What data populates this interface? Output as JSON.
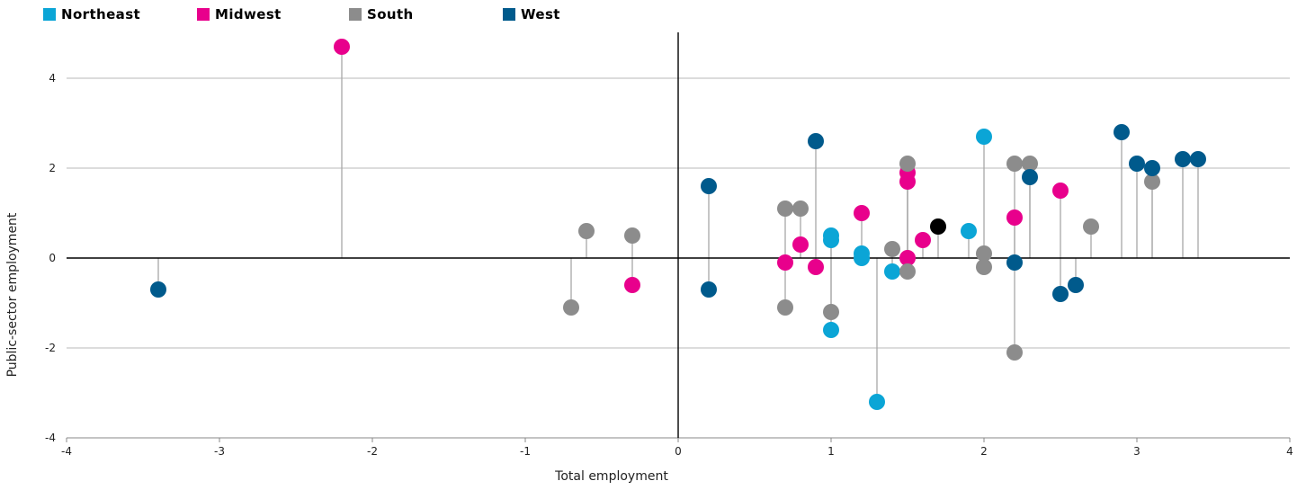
{
  "chart_data": {
    "type": "scatter",
    "title": "",
    "xlabel": "Total employment",
    "ylabel": "Public-sector employment",
    "xlim": [
      -4,
      4
    ],
    "ylim": [
      -4,
      5
    ],
    "xticks": [
      -4,
      -3,
      -2,
      -1,
      0,
      1,
      2,
      3,
      4
    ],
    "yticks": [
      -4,
      -2,
      0,
      2,
      4
    ],
    "grid": "horizontal",
    "legend_position": "top-left",
    "stems_to_zero": true,
    "series": [
      {
        "name": "Northeast",
        "color": "#0ba5d6",
        "points": [
          {
            "x": 1.0,
            "y": 0.5
          },
          {
            "x": 1.0,
            "y": 0.4
          },
          {
            "x": 1.0,
            "y": -1.6
          },
          {
            "x": 1.2,
            "y": 0.1
          },
          {
            "x": 1.2,
            "y": 0.0
          },
          {
            "x": 1.3,
            "y": -3.2
          },
          {
            "x": 1.4,
            "y": -0.3
          },
          {
            "x": 1.9,
            "y": 0.6
          },
          {
            "x": 2.0,
            "y": 2.7
          }
        ]
      },
      {
        "name": "Midwest",
        "color": "#e8008c",
        "points": [
          {
            "x": -2.2,
            "y": 4.7
          },
          {
            "x": -0.3,
            "y": -0.6
          },
          {
            "x": 0.7,
            "y": -0.1
          },
          {
            "x": 0.8,
            "y": 0.3
          },
          {
            "x": 0.9,
            "y": -0.2
          },
          {
            "x": 1.2,
            "y": 1.0
          },
          {
            "x": 1.5,
            "y": 1.9
          },
          {
            "x": 1.5,
            "y": 1.7
          },
          {
            "x": 1.5,
            "y": 0.0
          },
          {
            "x": 1.6,
            "y": 0.4
          },
          {
            "x": 2.2,
            "y": 0.9
          },
          {
            "x": 2.5,
            "y": 1.5
          }
        ]
      },
      {
        "name": "South",
        "color": "#8c8c8c",
        "points": [
          {
            "x": -0.7,
            "y": -1.1
          },
          {
            "x": -0.6,
            "y": 0.6
          },
          {
            "x": -0.3,
            "y": 0.5
          },
          {
            "x": 0.7,
            "y": 1.1
          },
          {
            "x": 0.7,
            "y": -1.1
          },
          {
            "x": 0.8,
            "y": 1.1
          },
          {
            "x": 1.0,
            "y": -1.2
          },
          {
            "x": 1.4,
            "y": 0.2
          },
          {
            "x": 1.5,
            "y": 2.1
          },
          {
            "x": 1.5,
            "y": -0.3
          },
          {
            "x": 2.0,
            "y": 0.1
          },
          {
            "x": 2.0,
            "y": -0.2
          },
          {
            "x": 2.2,
            "y": 2.1
          },
          {
            "x": 2.2,
            "y": -2.1
          },
          {
            "x": 2.3,
            "y": 2.1
          },
          {
            "x": 2.7,
            "y": 0.7
          },
          {
            "x": 3.1,
            "y": 1.7
          }
        ]
      },
      {
        "name": "West",
        "color": "#005a8c",
        "points": [
          {
            "x": -3.4,
            "y": -0.7
          },
          {
            "x": 0.2,
            "y": 1.6
          },
          {
            "x": 0.2,
            "y": -0.7
          },
          {
            "x": 0.9,
            "y": 2.6
          },
          {
            "x": 2.2,
            "y": -0.1
          },
          {
            "x": 2.3,
            "y": 1.8
          },
          {
            "x": 2.5,
            "y": -0.8
          },
          {
            "x": 2.6,
            "y": -0.6
          },
          {
            "x": 2.9,
            "y": 2.8
          },
          {
            "x": 3.0,
            "y": 2.1
          },
          {
            "x": 3.1,
            "y": 2.0
          },
          {
            "x": 3.3,
            "y": 2.2
          },
          {
            "x": 3.4,
            "y": 2.2
          }
        ]
      },
      {
        "name": "",
        "color": "#000000",
        "show_in_legend": false,
        "points": [
          {
            "x": 1.7,
            "y": 0.7
          }
        ]
      }
    ]
  }
}
